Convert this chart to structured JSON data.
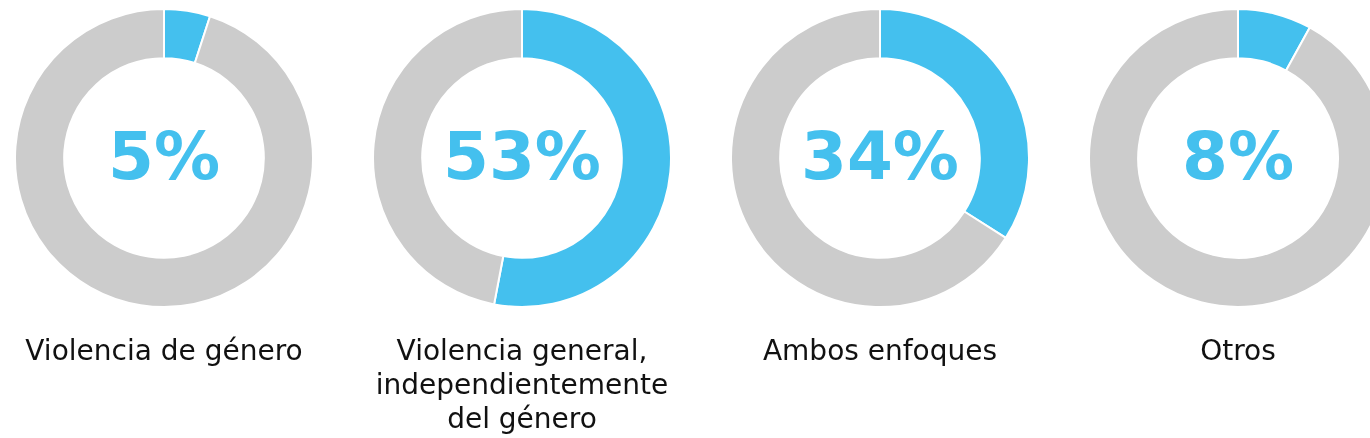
{
  "chart_data": [
    {
      "type": "donut",
      "title": "Violencia de género",
      "categories": [
        null,
        null
      ],
      "values": [
        5,
        95
      ],
      "colors": [
        "#44c0ee",
        "#cccccc"
      ],
      "value_labels": [
        "5%",
        null
      ]
    },
    {
      "type": "donut",
      "title": "Violencia general, independientemente del género",
      "categories": [
        null,
        null
      ],
      "values": [
        53,
        47
      ],
      "colors": [
        "#44c0ee",
        "#cccccc"
      ],
      "value_labels": [
        "53%",
        null
      ]
    },
    {
      "type": "donut",
      "title": "Ambos enfoques",
      "categories": [
        null,
        null
      ],
      "values": [
        34,
        66
      ],
      "colors": [
        "#44c0ee",
        "#cccccc"
      ],
      "value_labels": [
        "34%",
        null
      ]
    },
    {
      "type": "donut",
      "title": "Otros",
      "categories": [
        null,
        null
      ],
      "values": [
        8,
        92
      ],
      "colors": [
        "#44c0ee",
        "#cccccc"
      ],
      "value_labels": [
        "8%",
        null
      ]
    }
  ]
}
